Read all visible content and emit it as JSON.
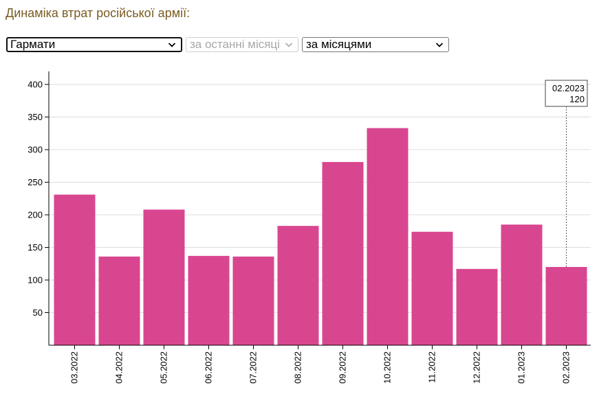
{
  "page": {
    "title": "Динаміка втрат російської армії:"
  },
  "controls": {
    "weapon_select": {
      "value": "Гармати"
    },
    "period_select": {
      "value": "за останні місяці",
      "disabled": true
    },
    "grouping_select": {
      "value": "за місяцями"
    }
  },
  "colors": {
    "bar": "#d94690",
    "grid": "#dddddd",
    "axis": "#000000",
    "title": "#7a5c22"
  },
  "tooltip": {
    "date": "02.2023",
    "value": "120"
  },
  "chart_data": {
    "type": "bar",
    "title": "",
    "xlabel": "",
    "ylabel": "",
    "categories": [
      "03.2022",
      "04.2022",
      "05.2022",
      "06.2022",
      "07.2022",
      "08.2022",
      "09.2022",
      "10.2022",
      "11.2022",
      "12.2022",
      "01.2023",
      "02.2023"
    ],
    "values": [
      231,
      136,
      208,
      137,
      136,
      183,
      281,
      333,
      174,
      117,
      185,
      120
    ],
    "yticks": [
      50,
      100,
      150,
      200,
      250,
      300,
      350,
      400
    ],
    "ylim": [
      0,
      420
    ],
    "grid": true,
    "highlighted_category": "02.2023"
  }
}
